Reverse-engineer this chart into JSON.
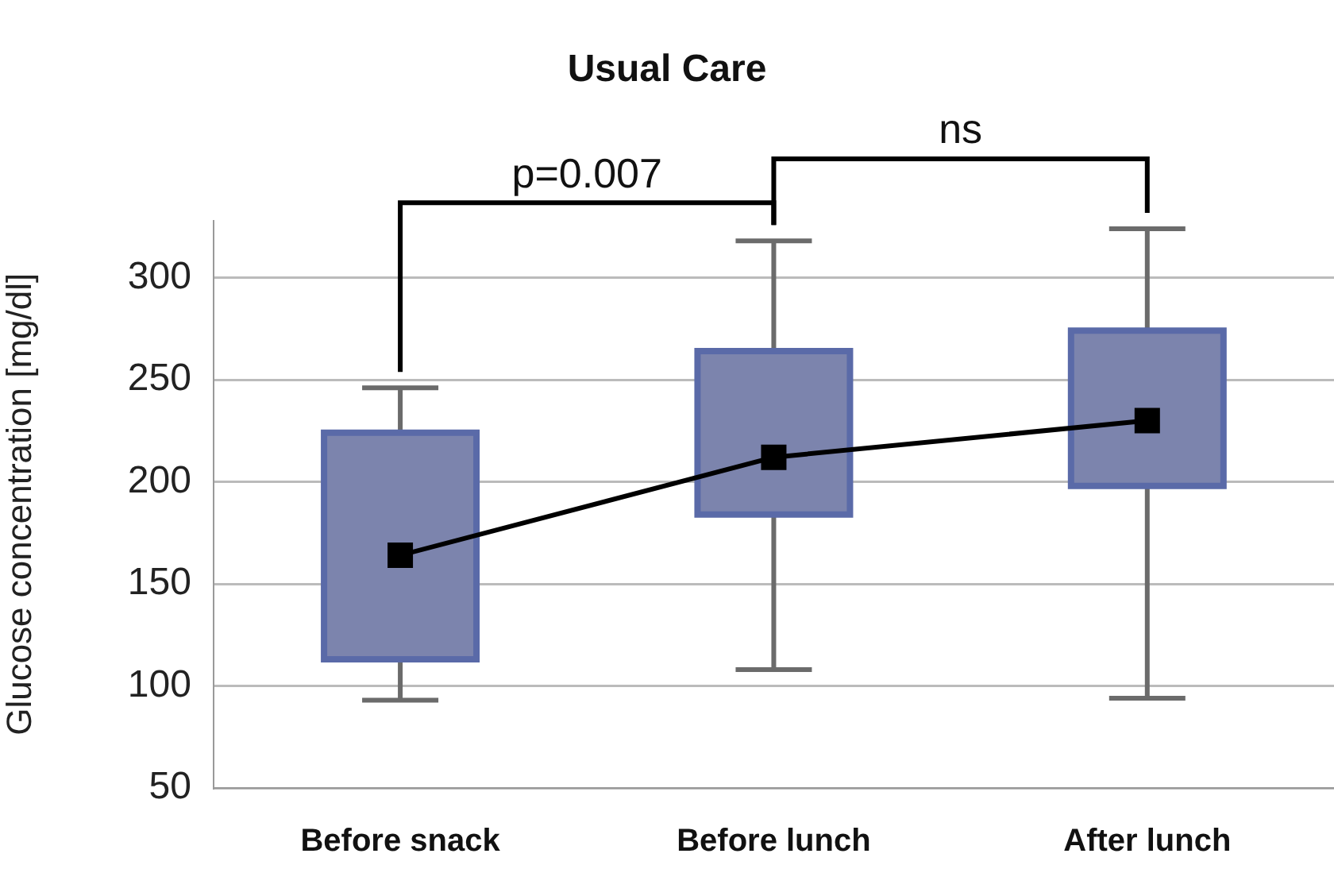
{
  "chart_data": {
    "type": "box",
    "title": "Usual Care",
    "ylabel": "Glucose concentration [mg/dl]",
    "categories": [
      "Before snack",
      "Before lunch",
      "After lunch"
    ],
    "series": [
      {
        "type": "box",
        "color": "#7c84ad",
        "boxes": [
          {
            "low": 93,
            "q1": 113,
            "median": 164,
            "q3": 224,
            "high": 246
          },
          {
            "low": 108,
            "q1": 184,
            "median": 212,
            "q3": 264,
            "high": 318
          },
          {
            "low": 94,
            "q1": 198,
            "median": 230,
            "q3": 274,
            "high": 324
          }
        ]
      },
      {
        "type": "line",
        "color": "#000000",
        "values": [
          164,
          212,
          230
        ]
      }
    ],
    "ylim": [
      50,
      328
    ],
    "yticks": [
      50,
      100,
      150,
      200,
      250,
      300
    ],
    "grid": "y",
    "legend": false,
    "annotations": [
      "p=0.007",
      "ns"
    ]
  }
}
